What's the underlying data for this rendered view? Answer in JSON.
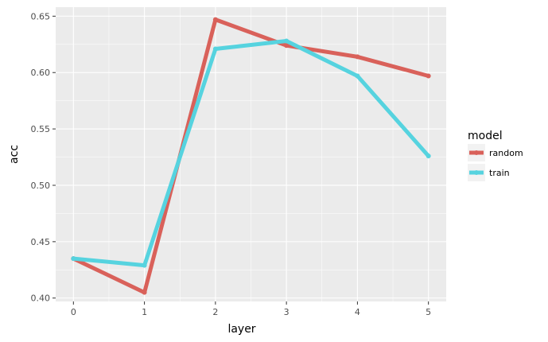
{
  "chart_data": {
    "type": "line",
    "x": [
      0,
      1,
      2,
      3,
      4,
      5
    ],
    "xlabel": "layer",
    "ylabel": "acc",
    "xlim": [
      -0.25,
      5.25
    ],
    "ylim": [
      0.397,
      0.658
    ],
    "x_ticks": [
      "0",
      "1",
      "2",
      "3",
      "4",
      "5"
    ],
    "y_ticks": [
      "0.40",
      "0.45",
      "0.50",
      "0.55",
      "0.60",
      "0.65"
    ],
    "grid": true,
    "legend": {
      "title": "model",
      "position": "right"
    },
    "series": [
      {
        "name": "random",
        "color": "#d9615a",
        "values": [
          0.435,
          0.405,
          0.647,
          0.624,
          0.614,
          0.597
        ]
      },
      {
        "name": "train",
        "color": "#56d3df",
        "values": [
          0.435,
          0.429,
          0.621,
          0.628,
          0.597,
          0.526
        ]
      }
    ]
  }
}
